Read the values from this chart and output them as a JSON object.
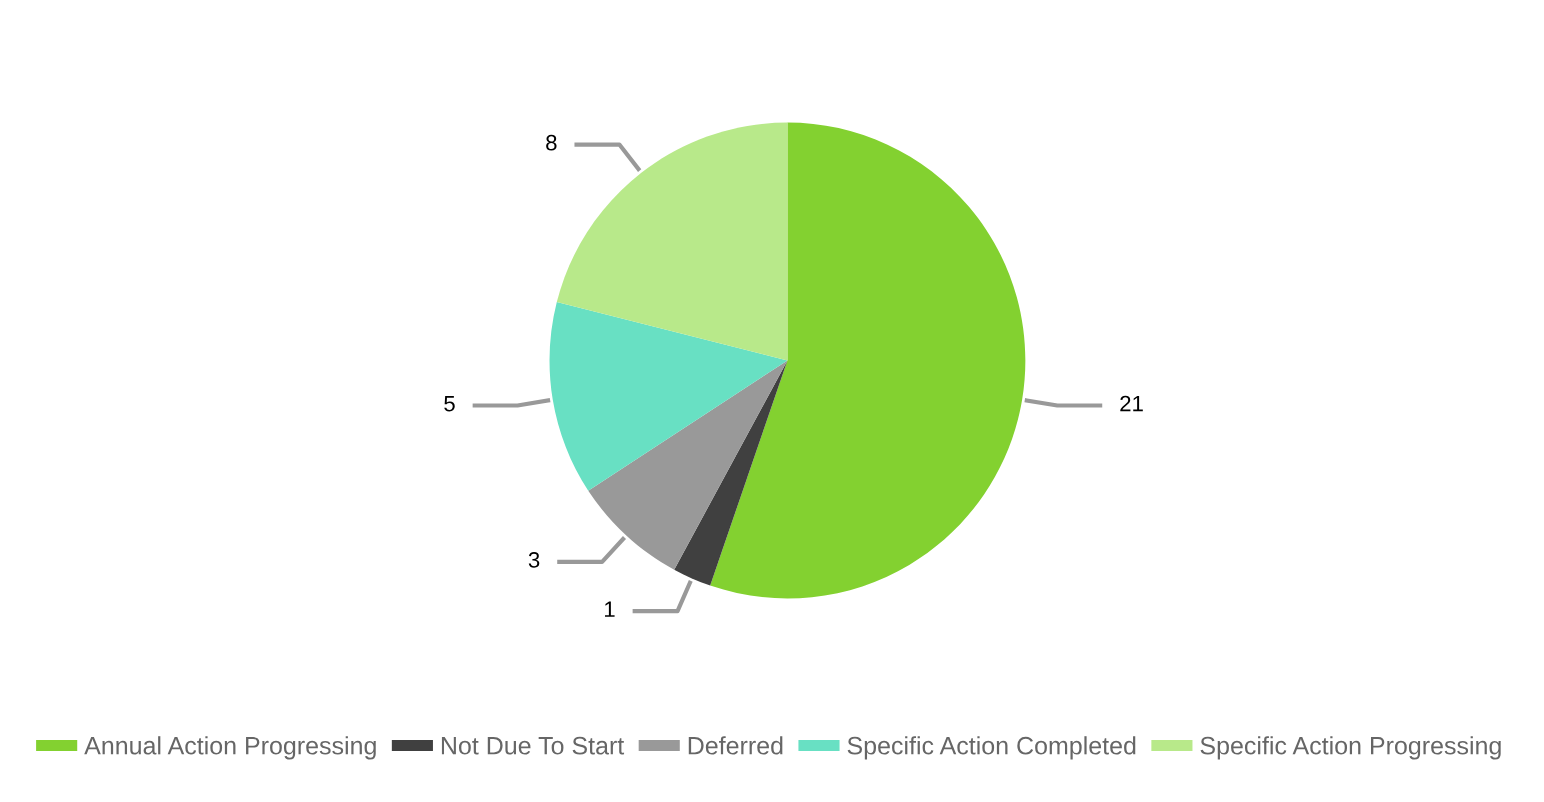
{
  "chart_data": {
    "type": "pie",
    "categories": [
      "Annual Action Progressing",
      "Not Due To Start",
      "Deferred",
      "Specific Action Completed",
      "Specific Action Progressing"
    ],
    "values": [
      21,
      1,
      3,
      5,
      8
    ],
    "colors": [
      "#83d130",
      "#404040",
      "#999999",
      "#68e0c3",
      "#b8e98a"
    ],
    "data_labels": true,
    "legend": "bottom"
  }
}
